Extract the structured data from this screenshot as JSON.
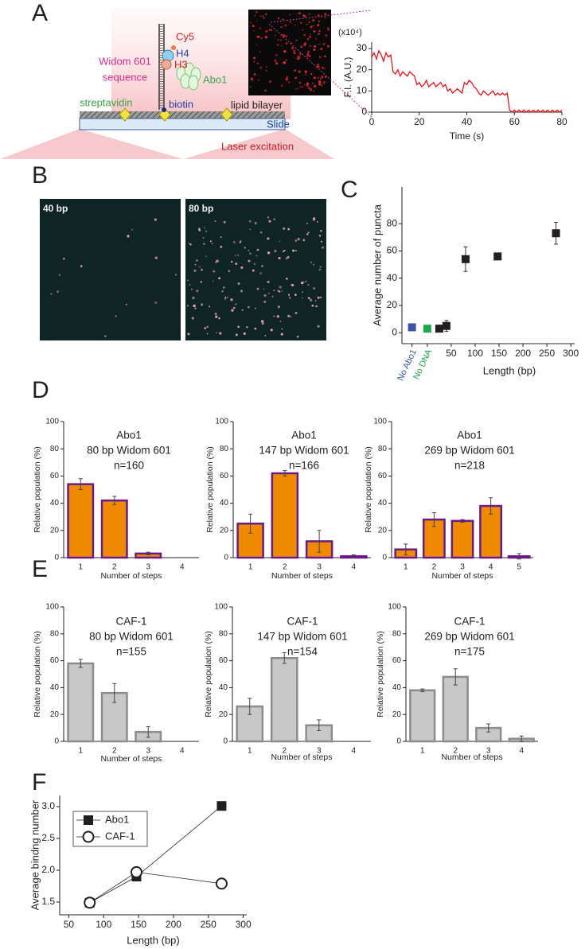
{
  "panel_labels": [
    "A",
    "B",
    "C",
    "D",
    "E",
    "F"
  ],
  "schematic": {
    "cy5": "Cy5",
    "h4": "H4",
    "h3": "H3",
    "widom_line1": "Widom 601",
    "widom_line2": "sequence",
    "abo1": "Abo1",
    "streptavidin": "streptavidin",
    "biotin": "biotin",
    "lipid_bilayer": "lipid bilayer",
    "slide": "Slide",
    "laser": "Laser excitation"
  },
  "images": {
    "left_label": "40 bp",
    "right_label": "80 bp"
  },
  "chart_data": [
    {
      "type": "line",
      "xlabel": "Time (s)",
      "ylabel": "F.I. (A.U.)",
      "scale_label": "(x10⁴)",
      "color": "#e8141c",
      "xlim": [
        0,
        80
      ],
      "xticks": [
        0,
        20,
        40,
        60,
        80
      ],
      "ylim": [
        0,
        33
      ],
      "yticks": [
        0,
        10,
        20,
        30
      ],
      "x": [
        0,
        1,
        2,
        3,
        4,
        5,
        6,
        7,
        8,
        9,
        10,
        11,
        12,
        13,
        14,
        15,
        16,
        17,
        18,
        19,
        20,
        21,
        22,
        23,
        24,
        25,
        26,
        27,
        28,
        29,
        30,
        31,
        32,
        33,
        34,
        35,
        36,
        37,
        38,
        39,
        40,
        41,
        42,
        43,
        44,
        45,
        46,
        47,
        48,
        49,
        50,
        51,
        52,
        53,
        54,
        55,
        56,
        57,
        58,
        59,
        60,
        61,
        62,
        63,
        64,
        65,
        66,
        67,
        68,
        69,
        70,
        71,
        72,
        73,
        74,
        75,
        76,
        77,
        78,
        79,
        80
      ],
      "values": [
        26,
        28,
        25,
        29,
        27,
        24,
        28,
        26,
        27,
        19,
        18,
        20,
        17,
        19,
        18,
        17,
        19,
        18,
        17,
        13,
        14,
        12,
        13,
        15,
        12,
        13,
        14,
        12,
        13,
        14,
        12,
        13,
        10,
        11,
        9,
        10,
        11,
        10,
        9,
        14,
        13,
        15,
        14,
        12,
        11,
        9,
        8,
        10,
        9,
        8,
        9,
        10,
        8,
        9,
        8,
        9,
        8,
        9,
        1,
        0,
        1,
        0,
        1,
        0,
        1,
        0,
        1,
        0,
        1,
        0,
        1,
        0,
        1,
        0,
        1,
        0,
        1,
        0,
        1,
        0,
        1
      ]
    },
    {
      "type": "scatter",
      "xlabel": "Length (bp)",
      "ylabel": "Average number of puncta",
      "xlim": [
        -53,
        308
      ],
      "xticks": [
        {
          "value": -32,
          "label": "No Abo1",
          "color": "#3a55a4"
        },
        {
          "value": 0,
          "label": "No DNA",
          "color": "#22a84a"
        },
        50,
        100,
        150,
        200,
        250,
        300
      ],
      "ylim": [
        -8,
        107
      ],
      "yticks": [
        0,
        20,
        40,
        60,
        80
      ],
      "x": [
        -32,
        0,
        25,
        40,
        80,
        147,
        269
      ],
      "values": [
        4,
        3,
        3,
        5,
        54,
        56,
        73
      ],
      "errors": [
        1.5,
        2,
        2.5,
        4,
        9,
        1,
        8
      ],
      "colors": [
        "#3a55a4",
        "#22a84a",
        "#231f20",
        "#231f20",
        "#231f20",
        "#231f20",
        "#231f20"
      ]
    },
    {
      "type": "bar",
      "title": [
        "Abo1",
        "80 bp Widom 601",
        "n=160"
      ],
      "xlabel": "Number of steps",
      "ylabel": "Relative population (%)",
      "color": "#f08a00",
      "edgecolor": "#6a1b8a",
      "categories": [
        "1",
        "2",
        "3",
        "4"
      ],
      "values": [
        54,
        42,
        3,
        0
      ],
      "errors": [
        4,
        3,
        1,
        null
      ],
      "ylim": [
        0,
        100
      ],
      "yticks": [
        0,
        20,
        40,
        60,
        80,
        100
      ]
    },
    {
      "type": "bar",
      "title": [
        "Abo1",
        "147 bp Widom 601",
        "n=166"
      ],
      "xlabel": "Number of steps",
      "ylabel": "Relative population (%)",
      "color": "#f08a00",
      "edgecolor": "#6a1b8a",
      "categories": [
        "1",
        "2",
        "3",
        "4"
      ],
      "values": [
        25,
        62,
        12,
        1
      ],
      "errors": [
        7,
        2,
        8,
        1
      ],
      "ylim": [
        0,
        100
      ],
      "yticks": [
        0,
        20,
        40,
        60,
        80,
        100
      ]
    },
    {
      "type": "bar",
      "title": [
        "Abo1",
        "269 bp Widom 601",
        "n=218"
      ],
      "xlabel": "Number of steps",
      "ylabel": "Relative population (%)",
      "color": "#f08a00",
      "edgecolor": "#6a1b8a",
      "categories": [
        "1",
        "2",
        "3",
        "4",
        "5"
      ],
      "values": [
        6,
        28,
        27,
        38,
        1
      ],
      "errors": [
        4,
        5,
        1,
        6,
        2
      ],
      "ylim": [
        0,
        100
      ],
      "yticks": [
        0,
        20,
        40,
        60,
        80,
        100
      ]
    },
    {
      "type": "bar",
      "title": [
        "CAF-1",
        "80 bp Widom 601",
        "n=155"
      ],
      "xlabel": "Number of steps",
      "ylabel": "Relative population (%)",
      "color": "#c8c8c8",
      "edgecolor": "#8c8c8c",
      "categories": [
        "1",
        "2",
        "3",
        "4"
      ],
      "values": [
        58,
        36,
        7,
        0
      ],
      "errors": [
        3,
        7,
        4,
        null
      ],
      "ylim": [
        0,
        100
      ],
      "yticks": [
        0,
        20,
        40,
        60,
        80,
        100
      ]
    },
    {
      "type": "bar",
      "title": [
        "CAF-1",
        "147 bp Widom 601",
        "n=154"
      ],
      "xlabel": "Number of steps",
      "ylabel": "Relative population (%)",
      "color": "#c8c8c8",
      "edgecolor": "#8c8c8c",
      "categories": [
        "1",
        "2",
        "3",
        "4"
      ],
      "values": [
        26,
        62,
        12,
        0
      ],
      "errors": [
        6,
        4,
        4,
        null
      ],
      "ylim": [
        0,
        100
      ],
      "yticks": [
        0,
        20,
        40,
        60,
        80,
        100
      ]
    },
    {
      "type": "bar",
      "title": [
        "CAF-1",
        "269 bp Widom 601",
        "n=175"
      ],
      "xlabel": "Number of steps",
      "ylabel": "Relative population (%)",
      "color": "#c8c8c8",
      "edgecolor": "#8c8c8c",
      "categories": [
        "1",
        "2",
        "3",
        "4"
      ],
      "values": [
        38,
        48,
        10,
        2
      ],
      "errors": [
        1,
        6,
        3,
        2
      ],
      "ylim": [
        0,
        100
      ],
      "yticks": [
        0,
        20,
        40,
        60,
        80,
        100
      ]
    },
    {
      "type": "line",
      "xlabel": "Length (bp)",
      "ylabel": "Average bindng number",
      "legend": "upper left",
      "xlim": [
        37,
        305
      ],
      "xticks": [
        50,
        100,
        150,
        200,
        250,
        300
      ],
      "ylim": [
        1.3,
        3.175
      ],
      "yticks": [
        1.5,
        {
          "value": 2,
          "label": "2.0"
        },
        2.5,
        {
          "value": 3,
          "label": "3.0"
        }
      ],
      "x": [
        80,
        147,
        269
      ],
      "series": [
        {
          "name": "Abo1",
          "color": "#231f20",
          "marker": "square",
          "values": [
            1.49,
            1.9,
            3.01
          ]
        },
        {
          "name": "CAF-1",
          "color": "#231f20",
          "marker": "circle",
          "values": [
            1.49,
            1.97,
            1.79
          ]
        }
      ]
    }
  ]
}
